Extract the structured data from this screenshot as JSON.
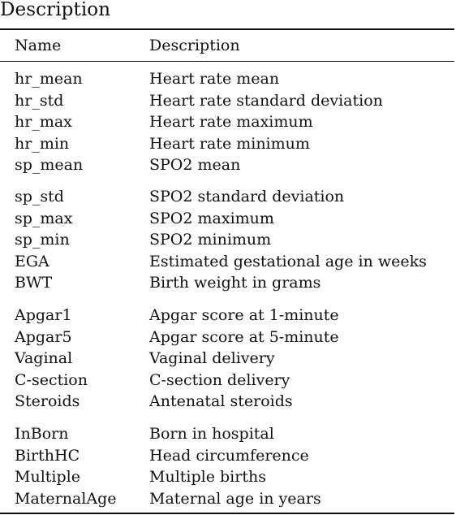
{
  "caption": "Description",
  "header": {
    "name": "Name",
    "description": "Description"
  },
  "groups": [
    {
      "rows": [
        {
          "name": "hr_mean",
          "description": "Heart rate mean"
        },
        {
          "name": "hr_std",
          "description": "Heart rate standard deviation"
        },
        {
          "name": "hr_max",
          "description": "Heart rate maximum"
        },
        {
          "name": "hr_min",
          "description": "Heart rate minimum"
        },
        {
          "name": "sp_mean",
          "description": "SPO2 mean"
        }
      ]
    },
    {
      "rows": [
        {
          "name": "sp_std",
          "description": "SPO2 standard deviation"
        },
        {
          "name": "sp_max",
          "description": "SPO2 maximum"
        },
        {
          "name": "sp_min",
          "description": "SPO2 minimum"
        },
        {
          "name": "EGA",
          "description": "Estimated gestational age in weeks"
        },
        {
          "name": "BWT",
          "description": "Birth weight in grams"
        }
      ]
    },
    {
      "rows": [
        {
          "name": "Apgar1",
          "description": "Apgar score at 1-minute"
        },
        {
          "name": "Apgar5",
          "description": "Apgar score at 5-minute"
        },
        {
          "name": "Vaginal",
          "description": "Vaginal delivery"
        },
        {
          "name": "C-section",
          "description": "C-section delivery"
        },
        {
          "name": "Steroids",
          "description": "Antenatal steroids"
        }
      ]
    },
    {
      "rows": [
        {
          "name": "InBorn",
          "description": "Born in hospital"
        },
        {
          "name": "BirthHC",
          "description": "Head circumference"
        },
        {
          "name": "Multiple",
          "description": "Multiple births"
        },
        {
          "name": "MaternalAge",
          "description": "Maternal age in years"
        }
      ]
    }
  ]
}
